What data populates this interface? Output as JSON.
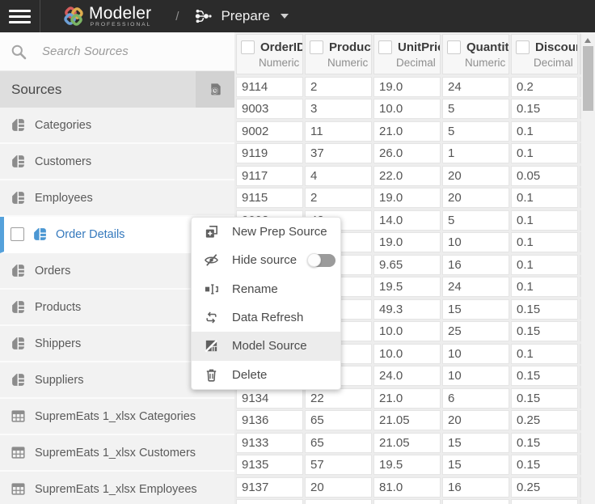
{
  "topbar": {
    "app_name": "Modeler",
    "app_edition": "PROFESSIONAL",
    "breadcrumb_separator": "/",
    "view_label": "Prepare"
  },
  "sidebar": {
    "search_placeholder": "Search Sources",
    "sources_title": "Sources",
    "items": [
      {
        "label": "Categories",
        "icon": "source-table-icon",
        "selected": false
      },
      {
        "label": "Customers",
        "icon": "source-table-icon",
        "selected": false
      },
      {
        "label": "Employees",
        "icon": "source-table-icon",
        "selected": false
      },
      {
        "label": "Order Details",
        "icon": "source-table-icon",
        "selected": true
      },
      {
        "label": "Orders",
        "icon": "source-table-icon",
        "selected": false
      },
      {
        "label": "Products",
        "icon": "source-table-icon",
        "selected": false
      },
      {
        "label": "Shippers",
        "icon": "source-table-icon",
        "selected": false
      },
      {
        "label": "Suppliers",
        "icon": "source-table-icon",
        "selected": false
      },
      {
        "label": "SupremEats 1_xlsx Categories",
        "icon": "sheet-icon",
        "selected": false
      },
      {
        "label": "SupremEats 1_xlsx Customers",
        "icon": "sheet-icon",
        "selected": false
      },
      {
        "label": "SupremEats 1_xlsx Employees",
        "icon": "sheet-icon",
        "selected": false
      }
    ]
  },
  "table": {
    "columns": [
      {
        "title": "OrderID",
        "type": "Numeric"
      },
      {
        "title": "ProductID",
        "type": "Numeric"
      },
      {
        "title": "UnitPrice",
        "type": "Decimal"
      },
      {
        "title": "Quantity",
        "type": "Numeric"
      },
      {
        "title": "Discount",
        "type": "Decimal"
      }
    ],
    "rows": [
      [
        "9114",
        "2",
        "19.0",
        "24",
        "0.2"
      ],
      [
        "9003",
        "3",
        "10.0",
        "5",
        "0.15"
      ],
      [
        "9002",
        "11",
        "21.0",
        "5",
        "0.1"
      ],
      [
        "9119",
        "37",
        "26.0",
        "1",
        "0.1"
      ],
      [
        "9117",
        "4",
        "22.0",
        "20",
        "0.05"
      ],
      [
        "9115",
        "2",
        "19.0",
        "20",
        "0.1"
      ],
      [
        "9002",
        "42",
        "14.0",
        "5",
        "0.1"
      ],
      [
        "",
        "",
        "19.0",
        "10",
        "0.1"
      ],
      [
        "",
        "",
        "9.65",
        "16",
        "0.1"
      ],
      [
        "",
        "",
        "19.5",
        "24",
        "0.1"
      ],
      [
        "",
        "",
        "49.3",
        "15",
        "0.15"
      ],
      [
        "",
        "",
        "10.0",
        "25",
        "0.15"
      ],
      [
        "",
        "",
        "10.0",
        "10",
        "0.1"
      ],
      [
        "",
        "",
        "24.0",
        "10",
        "0.15"
      ],
      [
        "9134",
        "22",
        "21.0",
        "6",
        "0.15"
      ],
      [
        "9136",
        "65",
        "21.05",
        "20",
        "0.25"
      ],
      [
        "9133",
        "65",
        "21.05",
        "15",
        "0.15"
      ],
      [
        "9135",
        "57",
        "19.5",
        "15",
        "0.15"
      ],
      [
        "9137",
        "20",
        "81.0",
        "16",
        "0.25"
      ],
      [
        "",
        "",
        "",
        "",
        ""
      ]
    ]
  },
  "context_menu": {
    "items": [
      {
        "label": "New Prep Source",
        "icon": "new-prep-source-icon",
        "highlighted": false,
        "toggle": false
      },
      {
        "label": "Hide source",
        "icon": "hide-source-icon",
        "highlighted": false,
        "toggle": true,
        "toggle_state": "off"
      },
      {
        "label": "Rename",
        "icon": "rename-icon",
        "highlighted": false,
        "toggle": false
      },
      {
        "label": "Data Refresh",
        "icon": "data-refresh-icon",
        "highlighted": false,
        "toggle": false
      },
      {
        "label": "Model Source",
        "icon": "model-source-icon",
        "highlighted": true,
        "toggle": false
      },
      {
        "label": "Delete",
        "icon": "delete-icon",
        "highlighted": false,
        "toggle": false
      }
    ]
  },
  "colors": {
    "topbar_bg": "#2B2B2B",
    "accent_blue": "#3579BD",
    "selected_bar_blue": "#55A1DB",
    "menu_highlight": "#ECECEC",
    "logo_red": "#D45C5C",
    "logo_yellow": "#DFAE4F",
    "logo_green": "#7CB565",
    "logo_blue": "#6D9FD6"
  }
}
